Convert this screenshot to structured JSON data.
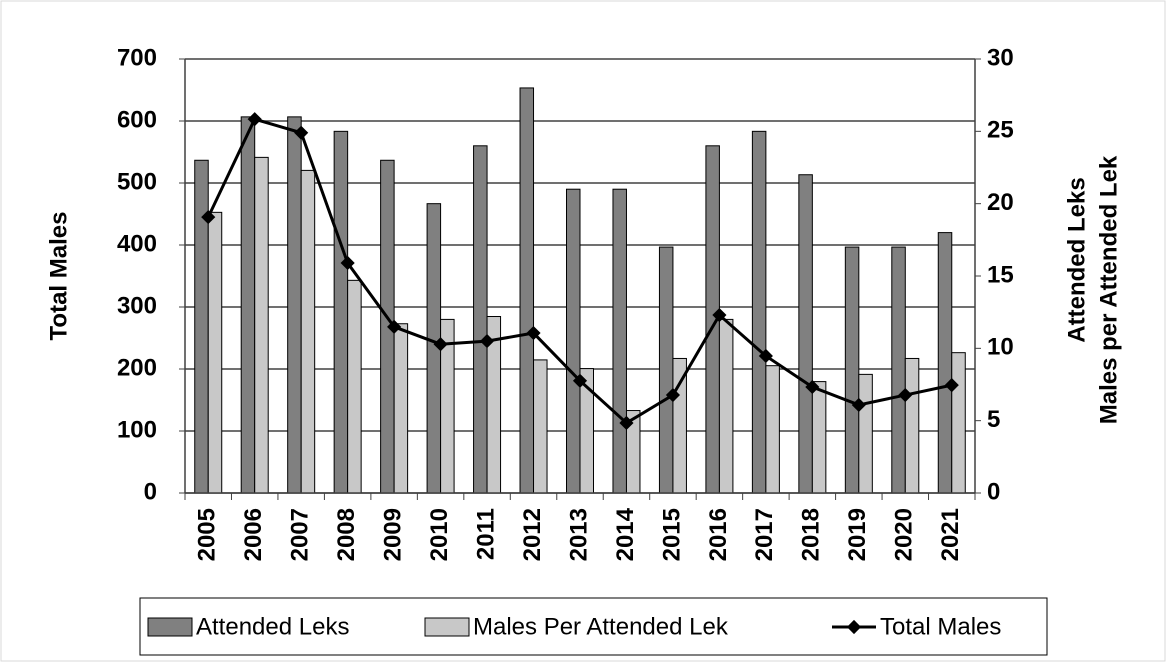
{
  "chart_data": {
    "type": "bar",
    "categories": [
      "2005",
      "2006",
      "2007",
      "2008",
      "2009",
      "2010",
      "2011",
      "2012",
      "2013",
      "2014",
      "2015",
      "2016",
      "2017",
      "2018",
      "2019",
      "2020",
      "2021"
    ],
    "series": [
      {
        "name": "Attended Leks",
        "color": "#808080",
        "axis": "y2",
        "values": [
          23,
          26,
          26,
          25,
          23,
          20,
          24,
          28,
          21,
          21,
          17,
          24,
          25,
          22,
          17,
          17,
          18
        ]
      },
      {
        "name": "Males Per Attended Lek",
        "color": "#c8c8c8",
        "axis": "y2",
        "values": [
          19.4,
          23.2,
          22.3,
          14.7,
          11.7,
          12.0,
          12.2,
          9.2,
          8.6,
          5.7,
          9.3,
          12.0,
          8.8,
          7.7,
          8.2,
          9.3,
          9.7
        ]
      },
      {
        "name": "Total Males",
        "color": "#000000",
        "type": "line",
        "axis": "y",
        "values": [
          445,
          603,
          581,
          371,
          268,
          240,
          245,
          258,
          181,
          113,
          158,
          287,
          221,
          171,
          142,
          158,
          174
        ]
      }
    ],
    "ylabel": "Total Males",
    "y2label": [
      "Attended Leks",
      "Males per Attended Lek"
    ],
    "ylim": [
      0,
      700
    ],
    "yticks": [
      0,
      100,
      200,
      300,
      400,
      500,
      600,
      700
    ],
    "y2lim": [
      0,
      30
    ],
    "y2ticks": [
      0,
      5,
      10,
      15,
      20,
      25,
      30
    ],
    "grid": true,
    "legend": "bottom"
  }
}
